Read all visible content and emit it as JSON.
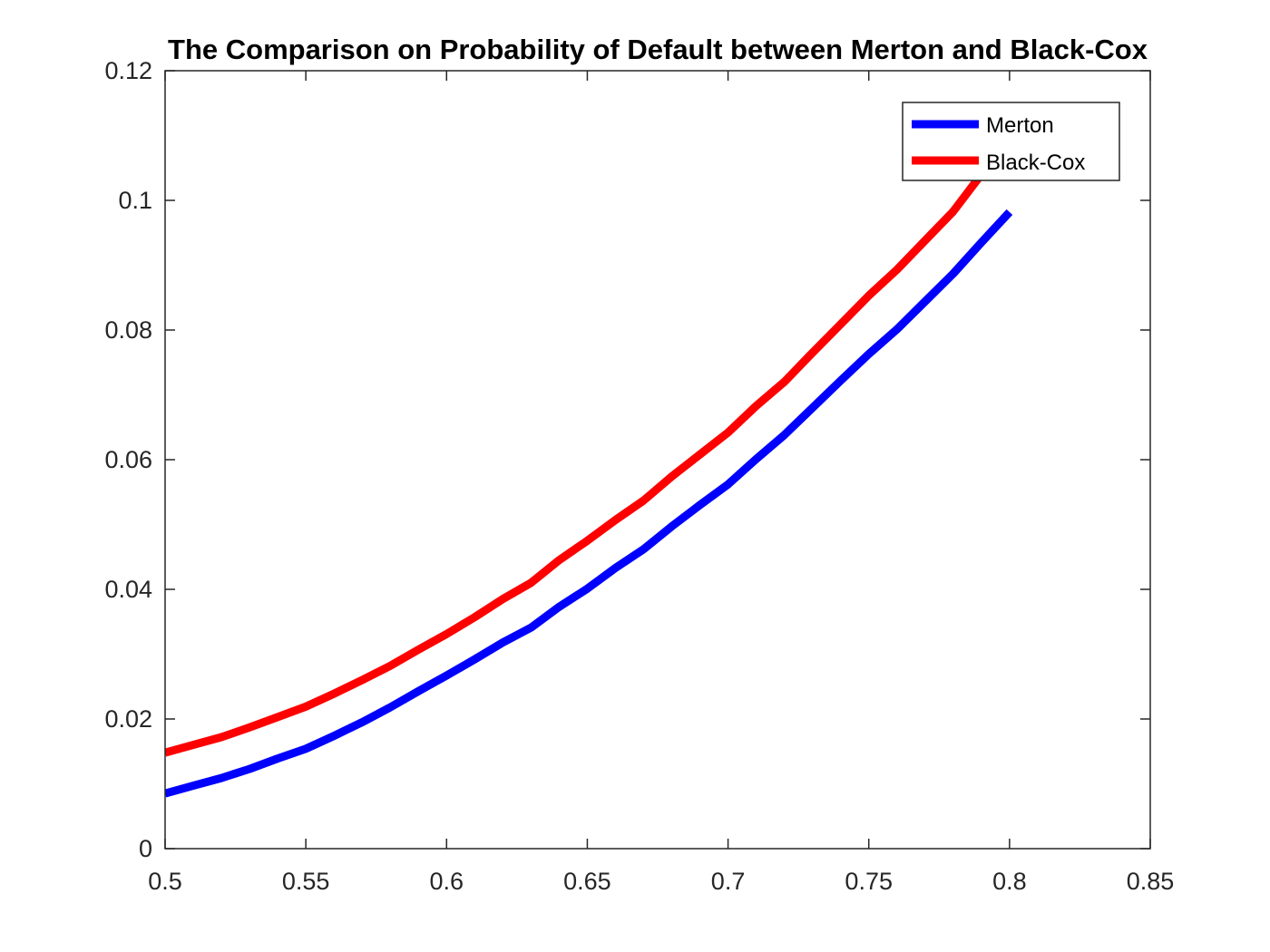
{
  "chart_data": {
    "type": "line",
    "title": "The Comparison on Probability of Default between Merton and Black-Cox",
    "xlabel": "",
    "ylabel": "",
    "xlim": [
      0.5,
      0.85
    ],
    "ylim": [
      0,
      0.12
    ],
    "x_ticks": [
      "0.5",
      "0.55",
      "0.6",
      "0.65",
      "0.7",
      "0.75",
      "0.8",
      "0.85"
    ],
    "y_ticks": [
      "0",
      "0.02",
      "0.04",
      "0.06",
      "0.08",
      "0.1",
      "0.12"
    ],
    "grid": false,
    "legend_position": "top-right",
    "x": [
      0.5,
      0.51,
      0.52,
      0.53,
      0.54,
      0.55,
      0.56,
      0.57,
      0.58,
      0.59,
      0.6,
      0.61,
      0.62,
      0.63,
      0.64,
      0.65,
      0.66,
      0.67,
      0.68,
      0.69,
      0.7,
      0.71,
      0.72,
      0.73,
      0.74,
      0.75,
      0.76,
      0.77,
      0.78,
      0.79,
      0.8
    ],
    "series": [
      {
        "name": "Merton",
        "color": "#0000ff",
        "values": [
          0.0085,
          0.0097,
          0.0109,
          0.0123,
          0.0139,
          0.0154,
          0.0174,
          0.0195,
          0.0218,
          0.0243,
          0.0267,
          0.0292,
          0.0318,
          0.0341,
          0.0373,
          0.0401,
          0.0433,
          0.0462,
          0.0497,
          0.053,
          0.0562,
          0.0601,
          0.0638,
          0.068,
          0.0722,
          0.0763,
          0.0801,
          0.0844,
          0.0887,
          0.0935,
          0.0982
        ]
      },
      {
        "name": "Black-Cox",
        "color": "#ff0000",
        "values": [
          0.0148,
          0.016,
          0.0172,
          0.0187,
          0.0203,
          0.0219,
          0.0239,
          0.026,
          0.0282,
          0.0307,
          0.0331,
          0.0357,
          0.0385,
          0.041,
          0.0445,
          0.0475,
          0.0507,
          0.0537,
          0.0574,
          0.0608,
          0.0642,
          0.0683,
          0.072,
          0.0765,
          0.0809,
          0.0853,
          0.0893,
          0.0938,
          0.0983,
          0.104,
          0.11
        ]
      }
    ]
  }
}
